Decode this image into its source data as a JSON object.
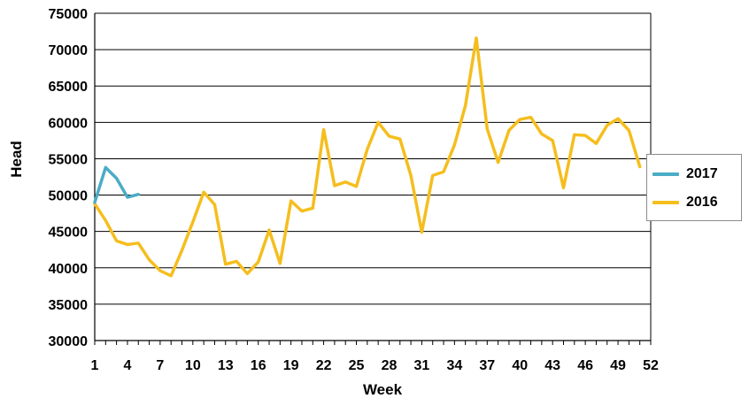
{
  "chart_data": {
    "type": "line",
    "title": "",
    "xlabel": "Week",
    "ylabel": "Head",
    "ylim": [
      30000,
      75000
    ],
    "xlim": [
      1,
      52
    ],
    "x_ticks": [
      "1",
      "4",
      "7",
      "10",
      "13",
      "16",
      "19",
      "22",
      "25",
      "28",
      "31",
      "34",
      "37",
      "40",
      "43",
      "46",
      "49",
      "52"
    ],
    "y_ticks": [
      "30000",
      "35000",
      "40000",
      "45000",
      "50000",
      "55000",
      "60000",
      "65000",
      "70000",
      "75000"
    ],
    "grid": "horizontal",
    "legend_position": "right",
    "series": [
      {
        "name": "2017",
        "color": "#4BACC6",
        "x": [
          1,
          2,
          3,
          4,
          5
        ],
        "values": [
          49000,
          53800,
          52300,
          49700,
          50100
        ]
      },
      {
        "name": "2016",
        "color": "#F5BE1E",
        "x": [
          1,
          2,
          3,
          4,
          5,
          6,
          7,
          8,
          9,
          10,
          11,
          12,
          13,
          14,
          15,
          16,
          17,
          18,
          19,
          20,
          21,
          22,
          23,
          24,
          25,
          26,
          27,
          28,
          29,
          30,
          31,
          32,
          33,
          34,
          35,
          36,
          37,
          38,
          39,
          40,
          41,
          42,
          43,
          44,
          45,
          46,
          47,
          48,
          49,
          50,
          51
        ],
        "values": [
          48800,
          46500,
          43700,
          43200,
          43400,
          41100,
          39600,
          38900,
          42400,
          46300,
          50400,
          48700,
          40500,
          40900,
          39200,
          40800,
          45200,
          40600,
          49200,
          47800,
          48200,
          59000,
          51300,
          51800,
          51200,
          56300,
          60000,
          58100,
          57700,
          52700,
          44900,
          52700,
          53200,
          56900,
          62300,
          71600,
          59100,
          54500,
          58900,
          60400,
          60700,
          58400,
          57500,
          51000,
          58300,
          58200,
          57100,
          59600,
          60500,
          58900,
          53900
        ]
      }
    ]
  }
}
